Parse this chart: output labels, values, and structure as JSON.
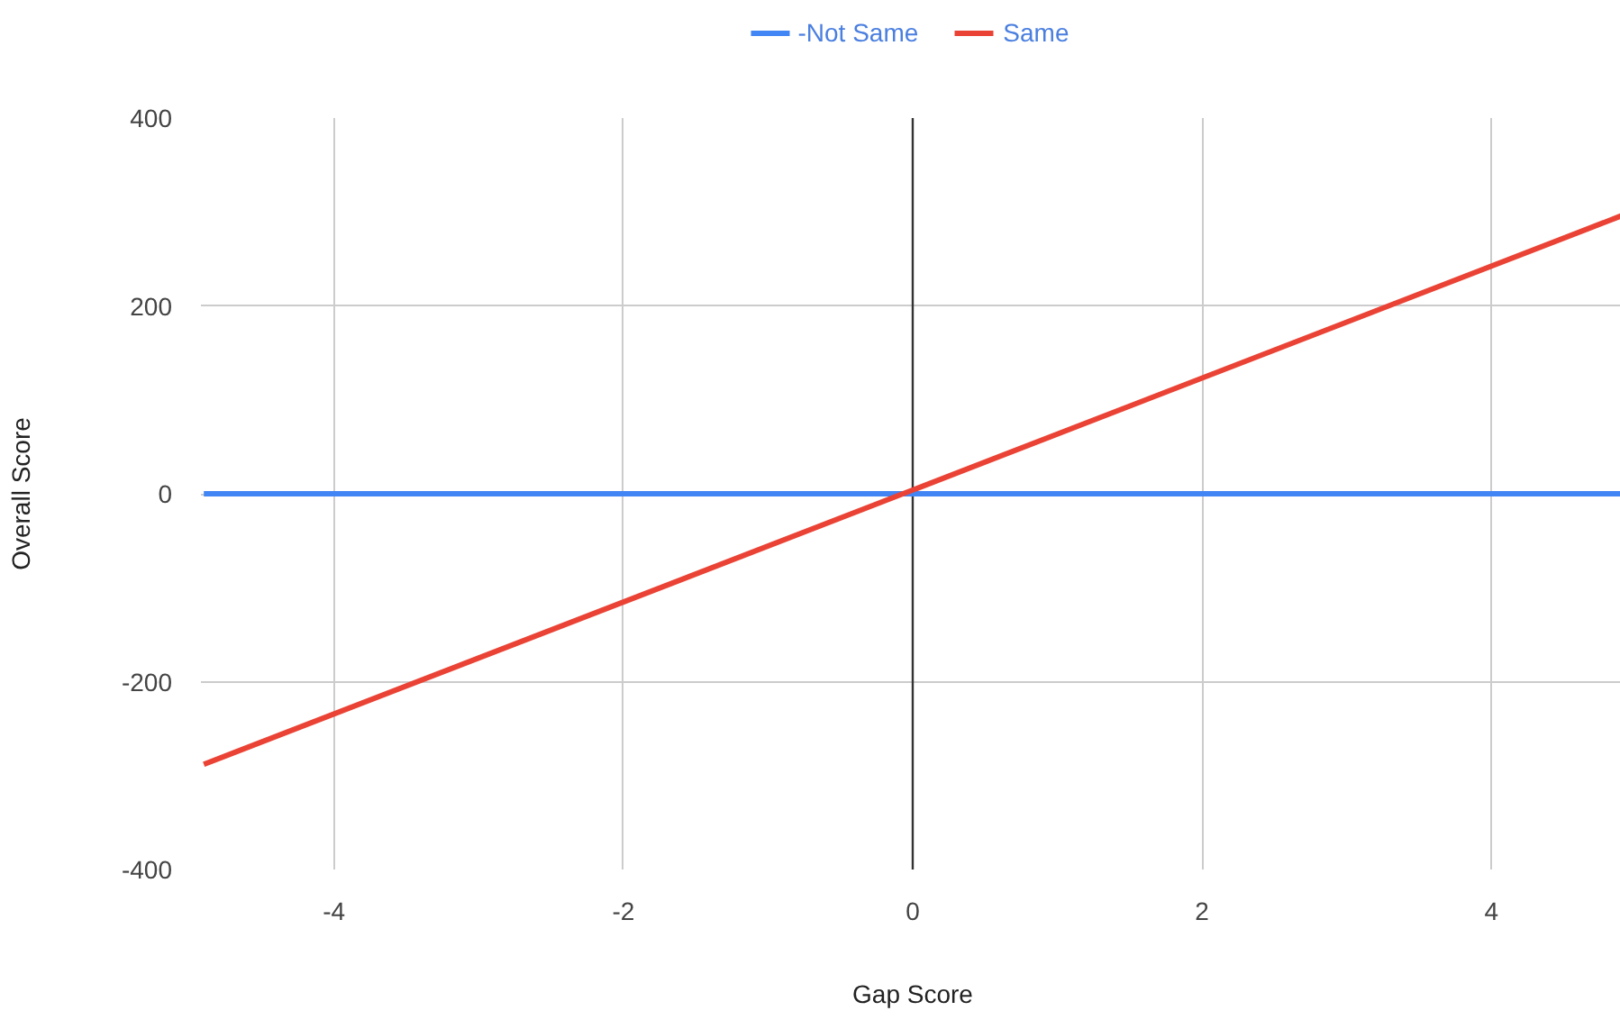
{
  "chart_data": {
    "type": "line",
    "xlabel": "Gap Score",
    "ylabel": "Overall Score",
    "xlim": [
      -4.92,
      4.92
    ],
    "ylim": [
      -400,
      400
    ],
    "xticks": [
      -4,
      -2,
      0,
      2,
      4
    ],
    "yticks": [
      -400,
      -200,
      0,
      200,
      400
    ],
    "x": [
      -4.9,
      4.9
    ],
    "series": [
      {
        "name": "-Not Same",
        "color": "#4285f4",
        "values": [
          0,
          0
        ]
      },
      {
        "name": "Same",
        "color": "#ea4335",
        "values": [
          -288,
          296
        ]
      }
    ],
    "ref_lines": [
      {
        "axis": "x",
        "value": 0,
        "color": "#333333"
      }
    ],
    "grid": true,
    "legend": "top",
    "marker": "none",
    "line_style": "solid"
  }
}
